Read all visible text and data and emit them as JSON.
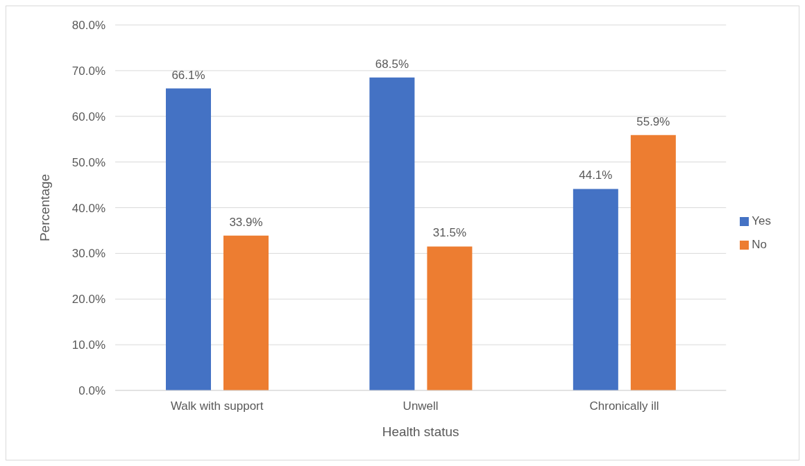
{
  "chart_data": {
    "type": "bar",
    "xlabel": "Health status",
    "ylabel": "Percentage",
    "categories": [
      "Walk with support",
      "Unwell",
      "Chronically ill"
    ],
    "series": [
      {
        "name": "Yes",
        "color": "#4472c4",
        "values": [
          66.1,
          68.5,
          44.1
        ],
        "value_labels": [
          "66.1%",
          "68.5%",
          "44.1%"
        ]
      },
      {
        "name": "No",
        "color": "#ed7d31",
        "values": [
          33.9,
          31.5,
          55.9
        ],
        "value_labels": [
          "33.9%",
          "31.5%",
          "55.9%"
        ]
      }
    ],
    "ylim": [
      0,
      80
    ],
    "yticks": [
      {
        "value": 0,
        "label": "0.0%"
      },
      {
        "value": 10,
        "label": "10.0%"
      },
      {
        "value": 20,
        "label": "20.0%"
      },
      {
        "value": 30,
        "label": "30.0%"
      },
      {
        "value": 40,
        "label": "40.0%"
      },
      {
        "value": 50,
        "label": "50.0%"
      },
      {
        "value": 60,
        "label": "60.0%"
      },
      {
        "value": 70,
        "label": "70.0%"
      },
      {
        "value": 80,
        "label": "80.0%"
      }
    ],
    "grid": "y",
    "legend": "right"
  }
}
